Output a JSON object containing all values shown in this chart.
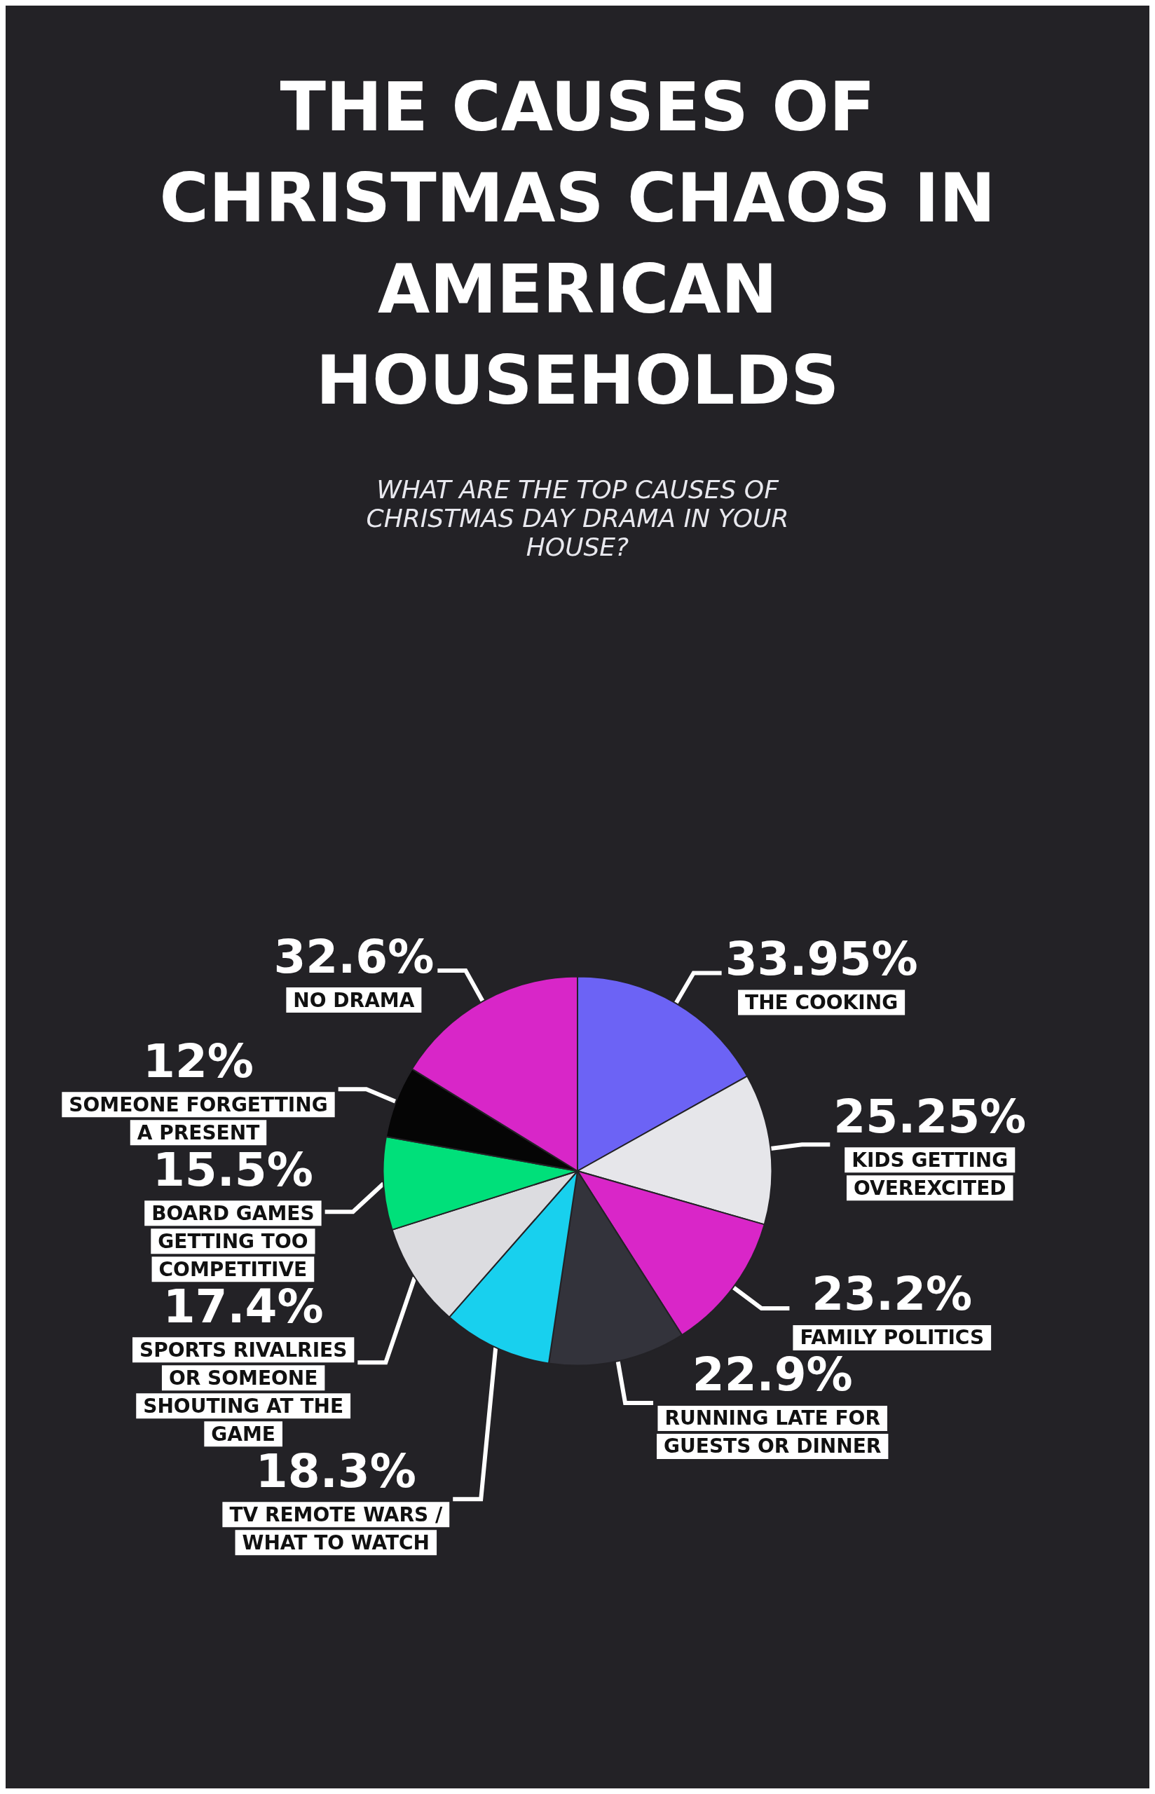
{
  "chart_data": {
    "type": "pie",
    "title": "THE CAUSES OF CHRISTMAS CHAOS IN AMERICAN HOUSEHOLDS",
    "subtitle": "WHAT ARE THE TOP CAUSES OF CHRISTMAS DAY DRAMA IN YOUR HOUSE?",
    "categories": [
      "THE COOKING",
      "KIDS GETTING OVEREXCITED",
      "FAMILY POLITICS",
      "RUNNING LATE FOR GUESTS OR DINNER",
      "TV REMOTE WARS / WHAT TO WATCH",
      "SPORTS RIVALRIES OR SOMEONE SHOUTING AT THE GAME",
      "BOARD GAMES GETTING TOO COMPETITIVE",
      "SOMEONE FORGETTING A PRESENT",
      "NO DRAMA"
    ],
    "values": [
      33.95,
      25.25,
      23.2,
      22.9,
      18.3,
      17.4,
      15.5,
      12,
      32.6
    ],
    "value_labels": [
      "33.95%",
      "25.25%",
      "23.2%",
      "22.9%",
      "18.3%",
      "17.4%",
      "15.5%",
      "12%",
      "32.6%"
    ],
    "colors": [
      "#6c63f5",
      "#e6e6ea",
      "#d926c8",
      "#33333b",
      "#18d0ee",
      "#dcdce0",
      "#00e07a",
      "#050505",
      "#d826c8"
    ]
  }
}
